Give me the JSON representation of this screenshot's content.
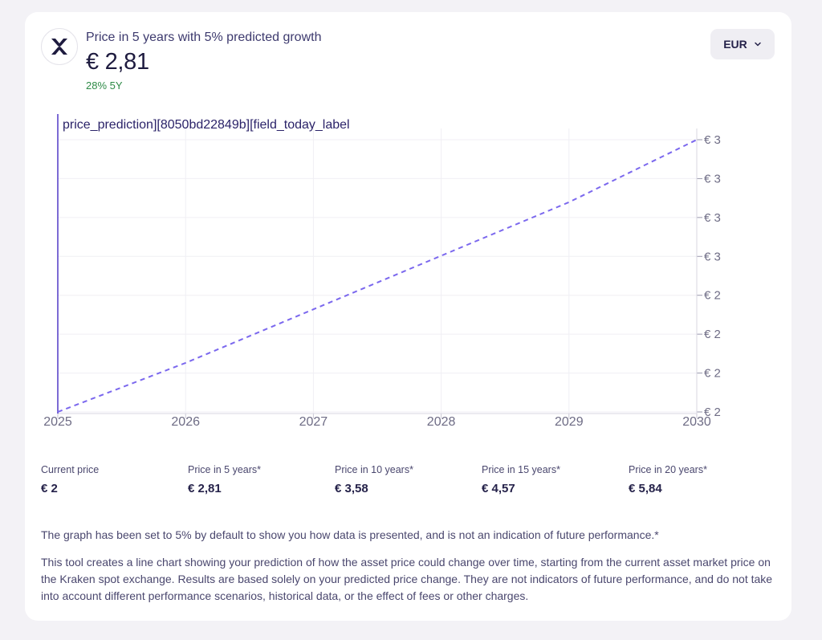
{
  "header": {
    "title": "Price in 5 years with 5% predicted growth",
    "price": "€ 2,81",
    "change": "28% 5Y",
    "asset_icon": "xrp-icon"
  },
  "currency_selector": {
    "value": "EUR",
    "icon": "chevron-down-icon"
  },
  "chart_data": {
    "type": "line",
    "today_label": "price_prediction][8050bd22849b][field_today_label",
    "x_ticks": [
      "2025",
      "2026",
      "2027",
      "2028",
      "2029",
      "2030"
    ],
    "y_ticks": [
      "€ 2",
      "€ 2",
      "€ 2",
      "€ 2",
      "€ 3",
      "€ 3",
      "€ 3",
      "€ 3"
    ],
    "series": [
      {
        "x": [
          2025,
          2026,
          2027,
          2028,
          2029,
          2030
        ],
        "y": [
          2.2,
          2.31,
          2.43,
          2.55,
          2.67,
          2.81
        ],
        "style": "dashed",
        "color": "#7b68ee"
      }
    ],
    "xlim": [
      2025,
      2030
    ],
    "ylim": [
      2.2,
      2.81
    ],
    "grid": true
  },
  "stats": [
    {
      "label": "Current price",
      "value": "€ 2"
    },
    {
      "label": "Price in 5 years*",
      "value": "€ 2,81"
    },
    {
      "label": "Price in 10 years*",
      "value": "€ 3,58"
    },
    {
      "label": "Price in 15 years*",
      "value": "€ 4,57"
    },
    {
      "label": "Price in 20 years*",
      "value": "€ 5,84"
    }
  ],
  "disclaimer": "The graph has been set to 5% by default to show you how data is presented, and is not an indication of future performance.*",
  "description": "This tool creates a line chart showing your prediction of how the asset price could change over time, starting from the current asset market price on the Kraken spot exchange. Results are based solely on your predicted price change. They are not indicators of future performance, and do not take into account different performance scenarios, historical data, or the effect of fees or other charges.",
  "colors": {
    "accent": "#7b68ee",
    "positive": "#2e8b47",
    "today_line": "#5b46c9"
  }
}
